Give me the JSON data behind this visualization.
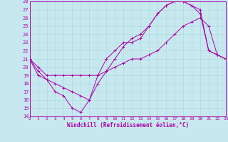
{
  "xlabel": "Windchill (Refroidissement éolien,°C)",
  "xlim": [
    0,
    23
  ],
  "ylim": [
    14,
    28
  ],
  "xticks": [
    0,
    1,
    2,
    3,
    4,
    5,
    6,
    7,
    8,
    9,
    10,
    11,
    12,
    13,
    14,
    15,
    16,
    17,
    18,
    19,
    20,
    21,
    22,
    23
  ],
  "yticks": [
    14,
    15,
    16,
    17,
    18,
    19,
    20,
    21,
    22,
    23,
    24,
    25,
    26,
    27,
    28
  ],
  "bg_color": "#c8e8f0",
  "line_color": "#aa00aa",
  "grid_color": "#aadddd",
  "lines": [
    {
      "x": [
        0,
        1,
        2,
        3,
        4,
        5,
        6,
        7,
        8,
        9,
        10,
        11,
        12,
        13,
        14,
        15,
        16,
        17,
        18,
        19,
        20,
        21,
        22,
        23
      ],
      "y": [
        21,
        19,
        18.5,
        17,
        16.5,
        15,
        14.5,
        16,
        19,
        21,
        22,
        23,
        23,
        23.5,
        25,
        26.5,
        27.5,
        28,
        28,
        27.5,
        27,
        22,
        21.5,
        21
      ]
    },
    {
      "x": [
        0,
        1,
        2,
        3,
        4,
        5,
        6,
        7,
        8,
        9,
        10,
        11,
        12,
        13,
        14,
        15,
        16,
        17,
        18,
        19,
        20,
        21,
        22,
        23
      ],
      "y": [
        21,
        20,
        19,
        19,
        19,
        19,
        19,
        19,
        19,
        19.5,
        20,
        20.5,
        21,
        21,
        21.5,
        22,
        23,
        24,
        25,
        25.5,
        26,
        25,
        21.5,
        21
      ]
    },
    {
      "x": [
        0,
        1,
        2,
        3,
        4,
        5,
        6,
        7,
        8,
        9,
        10,
        11,
        12,
        13,
        14,
        15,
        16,
        17,
        18,
        19,
        20,
        21,
        22,
        23
      ],
      "y": [
        21,
        19.5,
        18.5,
        18,
        17.5,
        17,
        16.5,
        16,
        18,
        19.5,
        21,
        22.5,
        23.5,
        24,
        25,
        26.5,
        27.5,
        28,
        28,
        27.5,
        26.5,
        22,
        21.5,
        21
      ]
    }
  ]
}
